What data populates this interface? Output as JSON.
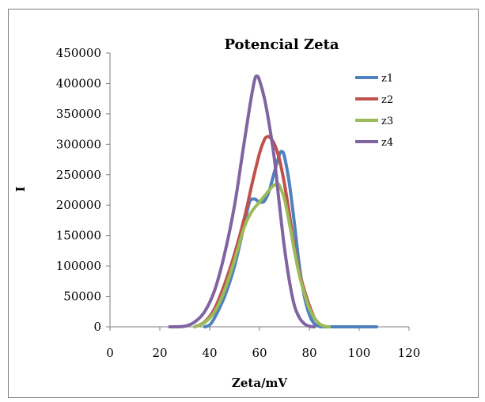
{
  "chart_data": {
    "type": "line",
    "title": "Potencial Zeta",
    "xlabel": "Zeta/mV",
    "ylabel": "I",
    "xlim": [
      0,
      120
    ],
    "ylim": [
      0,
      450000
    ],
    "xticks": [
      "0",
      "20",
      "40",
      "60",
      "80",
      "100",
      "120"
    ],
    "yticks": [
      "0",
      "50000",
      "100000",
      "150000",
      "200000",
      "250000",
      "300000",
      "350000",
      "400000",
      "450000"
    ],
    "grid": false,
    "legend": "right",
    "series": [
      {
        "name": "z1",
        "color": "#4f81bd",
        "points": [
          [
            38,
            0
          ],
          [
            40,
            3000
          ],
          [
            42,
            15000
          ],
          [
            46,
            50000
          ],
          [
            50,
            100000
          ],
          [
            54,
            170000
          ],
          [
            56,
            205000
          ],
          [
            58,
            210000
          ],
          [
            60,
            205000
          ],
          [
            62,
            207000
          ],
          [
            64,
            225000
          ],
          [
            66,
            255000
          ],
          [
            68,
            283000
          ],
          [
            69,
            288000
          ],
          [
            70,
            280000
          ],
          [
            72,
            235000
          ],
          [
            74,
            170000
          ],
          [
            76,
            100000
          ],
          [
            78,
            50000
          ],
          [
            80,
            20000
          ],
          [
            82,
            5000
          ],
          [
            84,
            1000
          ],
          [
            86,
            0
          ],
          [
            100,
            0
          ],
          [
            107,
            0
          ]
        ]
      },
      {
        "name": "z2",
        "color": "#c0504d",
        "points": [
          [
            34,
            0
          ],
          [
            38,
            8000
          ],
          [
            42,
            30000
          ],
          [
            46,
            70000
          ],
          [
            50,
            120000
          ],
          [
            54,
            180000
          ],
          [
            57,
            235000
          ],
          [
            60,
            285000
          ],
          [
            62,
            308000
          ],
          [
            63,
            312000
          ],
          [
            64,
            312000
          ],
          [
            66,
            300000
          ],
          [
            68,
            275000
          ],
          [
            70,
            235000
          ],
          [
            72,
            185000
          ],
          [
            74,
            130000
          ],
          [
            76,
            90000
          ],
          [
            78,
            60000
          ],
          [
            80,
            35000
          ],
          [
            82,
            15000
          ],
          [
            84,
            5000
          ],
          [
            86,
            1000
          ],
          [
            88,
            0
          ]
        ]
      },
      {
        "name": "z3",
        "color": "#9bbb59",
        "points": [
          [
            34,
            0
          ],
          [
            38,
            7000
          ],
          [
            42,
            25000
          ],
          [
            46,
            60000
          ],
          [
            50,
            110000
          ],
          [
            54,
            165000
          ],
          [
            57,
            190000
          ],
          [
            60,
            205000
          ],
          [
            63,
            220000
          ],
          [
            65,
            230000
          ],
          [
            67,
            235000
          ],
          [
            68,
            232000
          ],
          [
            70,
            210000
          ],
          [
            72,
            170000
          ],
          [
            74,
            125000
          ],
          [
            76,
            85000
          ],
          [
            78,
            55000
          ],
          [
            80,
            30000
          ],
          [
            82,
            15000
          ],
          [
            84,
            5000
          ],
          [
            86,
            1000
          ],
          [
            88,
            0
          ]
        ]
      },
      {
        "name": "z4",
        "color": "#8064a2",
        "points": [
          [
            24,
            0
          ],
          [
            30,
            1000
          ],
          [
            34,
            8000
          ],
          [
            38,
            25000
          ],
          [
            42,
            60000
          ],
          [
            46,
            120000
          ],
          [
            50,
            200000
          ],
          [
            53,
            280000
          ],
          [
            56,
            360000
          ],
          [
            58,
            405000
          ],
          [
            59,
            412000
          ],
          [
            60,
            405000
          ],
          [
            62,
            375000
          ],
          [
            64,
            330000
          ],
          [
            66,
            275000
          ],
          [
            68,
            200000
          ],
          [
            70,
            130000
          ],
          [
            72,
            75000
          ],
          [
            74,
            35000
          ],
          [
            76,
            15000
          ],
          [
            78,
            5000
          ],
          [
            80,
            1000
          ],
          [
            82,
            0
          ]
        ]
      }
    ]
  }
}
